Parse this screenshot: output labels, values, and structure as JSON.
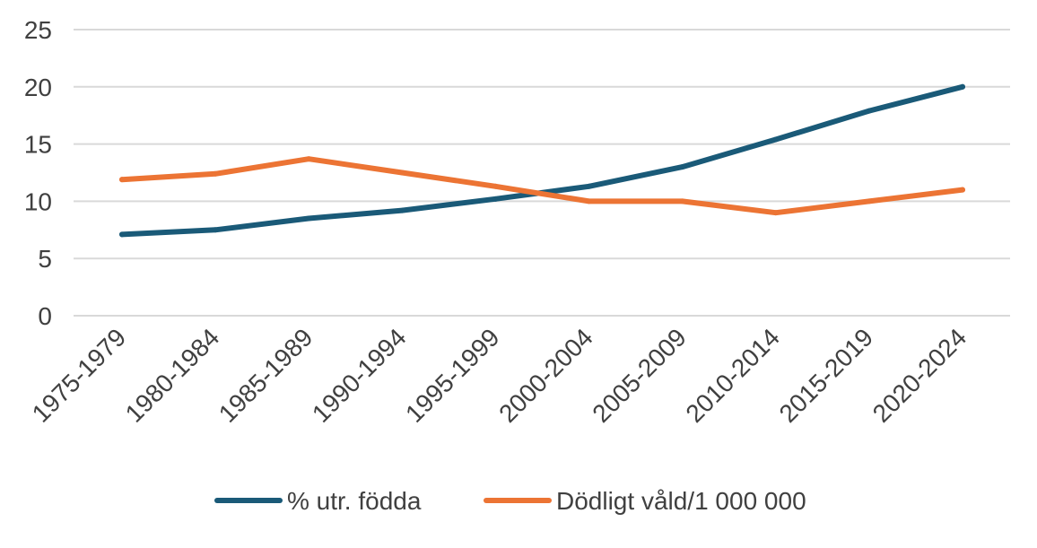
{
  "chart_data": {
    "type": "line",
    "categories": [
      "1975-1979",
      "1980-1984",
      "1985-1989",
      "1990-1994",
      "1995-1999",
      "2000-2004",
      "2005-2009",
      "2010-2014",
      "2015-2019",
      "2020-2024"
    ],
    "series": [
      {
        "name": "% utr. födda",
        "color": "#1a5a78",
        "values": [
          7.1,
          7.5,
          8.5,
          9.2,
          10.2,
          11.3,
          13.0,
          15.4,
          17.9,
          20.0
        ]
      },
      {
        "name": "Dödligt våld/1 000 000",
        "color": "#ec7434",
        "values": [
          11.9,
          12.4,
          13.7,
          12.5,
          11.3,
          10.0,
          10.0,
          9.0,
          10.0,
          11.0
        ]
      }
    ],
    "ylim": [
      0,
      25
    ],
    "yticks": [
      0,
      5,
      10,
      15,
      20,
      25
    ],
    "title": "",
    "xlabel": "",
    "ylabel": "",
    "grid": true,
    "legend_position": "bottom",
    "gridline_color": "#d9d9d9"
  }
}
